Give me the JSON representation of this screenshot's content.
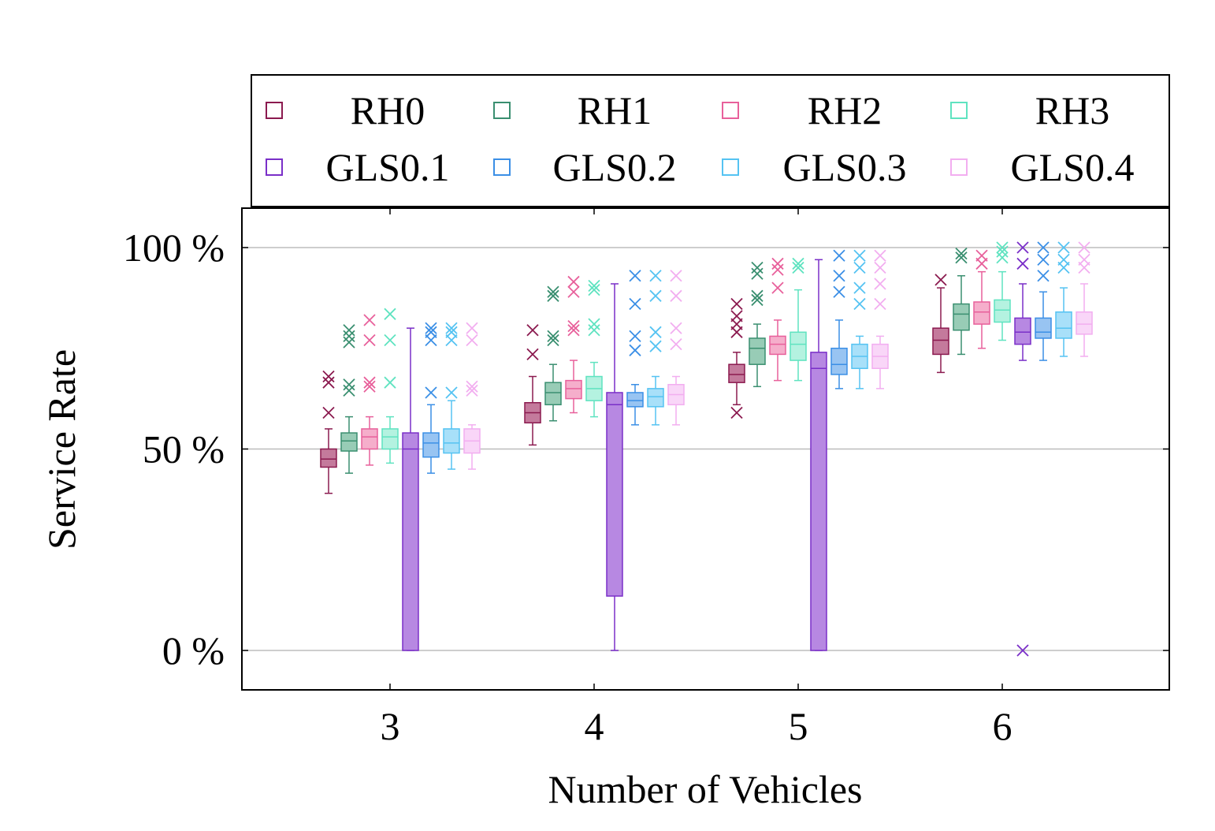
{
  "chart_data": {
    "type": "box",
    "xlabel": "Number of Vehicles",
    "ylabel": "Service Rate",
    "categories": [
      "3",
      "4",
      "5",
      "6"
    ],
    "y_ticks": [
      0,
      50,
      100
    ],
    "y_tick_labels": [
      "0 %",
      "50 %",
      "100 %"
    ],
    "ylim": [
      -10,
      110
    ],
    "grid": "horizontal",
    "legend_position": "top",
    "series": [
      {
        "name": "RH0",
        "color": "#8b1a4f",
        "fill": "#c47a9c",
        "boxes": [
          {
            "min": 39,
            "q1": 45.5,
            "median": 47.5,
            "q3": 50,
            "max": 55,
            "outliers": [
              59,
              66.5,
              68
            ]
          },
          {
            "min": 51,
            "q1": 56.5,
            "median": 59,
            "q3": 61.5,
            "max": 68,
            "outliers": [
              73.5,
              79.5
            ]
          },
          {
            "min": 61,
            "q1": 66.5,
            "median": 68.5,
            "q3": 71,
            "max": 74,
            "outliers": [
              59,
              79,
              81,
              83,
              86
            ]
          },
          {
            "min": 69,
            "q1": 73.5,
            "median": 77,
            "q3": 80,
            "max": 90,
            "outliers": [
              92
            ]
          }
        ]
      },
      {
        "name": "RH1",
        "color": "#3a8f70",
        "fill": "#98ccb6",
        "boxes": [
          {
            "min": 44,
            "q1": 49.5,
            "median": 52,
            "q3": 54,
            "max": 58,
            "outliers": [
              64.5,
              66,
              76.5,
              78,
              79.5
            ]
          },
          {
            "min": 57,
            "q1": 61,
            "median": 64,
            "q3": 66.5,
            "max": 71,
            "outliers": [
              77,
              78,
              88,
              89
            ]
          },
          {
            "min": 65.5,
            "q1": 71,
            "median": 75,
            "q3": 77.5,
            "max": 81,
            "outliers": [
              87,
              88,
              93.5,
              95
            ]
          },
          {
            "min": 73.5,
            "q1": 79.5,
            "median": 83.5,
            "q3": 86,
            "max": 93,
            "outliers": [
              97.5,
              98.5
            ]
          }
        ]
      },
      {
        "name": "RH2",
        "color": "#e8609b",
        "fill": "#f5aecb",
        "boxes": [
          {
            "min": 46,
            "q1": 50,
            "median": 53,
            "q3": 55,
            "max": 58,
            "outliers": [
              65.5,
              66.5,
              77,
              82
            ]
          },
          {
            "min": 59,
            "q1": 62.5,
            "median": 65,
            "q3": 67,
            "max": 72,
            "outliers": [
              79.5,
              80.5,
              89,
              91.5
            ]
          },
          {
            "min": 67,
            "q1": 73.5,
            "median": 76,
            "q3": 78,
            "max": 82,
            "outliers": [
              90,
              94.5,
              96
            ]
          },
          {
            "min": 75,
            "q1": 81,
            "median": 84,
            "q3": 86.5,
            "max": 94,
            "outliers": [
              96,
              98
            ]
          }
        ]
      },
      {
        "name": "RH3",
        "color": "#5fe3c0",
        "fill": "#b4f2e0",
        "boxes": [
          {
            "min": 46.5,
            "q1": 50,
            "median": 53,
            "q3": 55,
            "max": 58,
            "outliers": [
              66.5,
              77,
              83.5
            ]
          },
          {
            "min": 58,
            "q1": 62,
            "median": 65,
            "q3": 68,
            "max": 71.5,
            "outliers": [
              79.5,
              81,
              89.5,
              90.5
            ]
          },
          {
            "min": 67,
            "q1": 72,
            "median": 76,
            "q3": 79,
            "max": 89.5,
            "outliers": [
              95,
              96
            ]
          },
          {
            "min": 77,
            "q1": 81.5,
            "median": 84.5,
            "q3": 87,
            "max": 94,
            "outliers": [
              97.5,
              99,
              100
            ]
          }
        ]
      },
      {
        "name": "GLS0.1",
        "color": "#7a2fc8",
        "fill": "#b788e2",
        "boxes": [
          {
            "min": 0,
            "q1": 0,
            "median": 50,
            "q3": 54,
            "max": 80,
            "outliers": []
          },
          {
            "min": 0,
            "q1": 13.5,
            "median": 61,
            "q3": 64,
            "max": 91,
            "outliers": []
          },
          {
            "min": 0,
            "q1": 0,
            "median": 70,
            "q3": 74,
            "max": 97,
            "outliers": []
          },
          {
            "min": 72,
            "q1": 76,
            "median": 79,
            "q3": 82.5,
            "max": 91,
            "outliers": [
              0,
              96,
              100
            ]
          }
        ]
      },
      {
        "name": "GLS0.2",
        "color": "#3b8fe6",
        "fill": "#98c4f2",
        "boxes": [
          {
            "min": 44,
            "q1": 48,
            "median": 51.5,
            "q3": 54,
            "max": 61,
            "outliers": [
              64,
              77,
              79,
              80
            ]
          },
          {
            "min": 56,
            "q1": 60.5,
            "median": 62,
            "q3": 64,
            "max": 66,
            "outliers": [
              74.5,
              78,
              86,
              93
            ]
          },
          {
            "min": 65,
            "q1": 68.5,
            "median": 71,
            "q3": 75,
            "max": 82,
            "outliers": [
              89,
              93,
              98
            ]
          },
          {
            "min": 72,
            "q1": 77.5,
            "median": 79,
            "q3": 82.5,
            "max": 89,
            "outliers": [
              93,
              97,
              100
            ]
          }
        ]
      },
      {
        "name": "GLS0.3",
        "color": "#55c3f2",
        "fill": "#a8e0f9",
        "boxes": [
          {
            "min": 45,
            "q1": 49,
            "median": 51.5,
            "q3": 55,
            "max": 62,
            "outliers": [
              64,
              77,
              79,
              80
            ]
          },
          {
            "min": 56,
            "q1": 60.5,
            "median": 63,
            "q3": 65,
            "max": 68,
            "outliers": [
              75.5,
              79,
              88,
              93
            ]
          },
          {
            "min": 65,
            "q1": 70,
            "median": 73,
            "q3": 76,
            "max": 78,
            "outliers": [
              86,
              90,
              95,
              98
            ]
          },
          {
            "min": 73,
            "q1": 77.5,
            "median": 80,
            "q3": 84,
            "max": 90,
            "outliers": [
              95,
              97,
              100
            ]
          }
        ]
      },
      {
        "name": "GLS0.4",
        "color": "#f2aef0",
        "fill": "#f9d6f8",
        "boxes": [
          {
            "min": 45,
            "q1": 49,
            "median": 52,
            "q3": 55,
            "max": 56,
            "outliers": [
              64.5,
              65.5,
              77,
              80
            ]
          },
          {
            "min": 56,
            "q1": 61,
            "median": 63.5,
            "q3": 66,
            "max": 68,
            "outliers": [
              76,
              80,
              88,
              93
            ]
          },
          {
            "min": 65,
            "q1": 70,
            "median": 73,
            "q3": 76,
            "max": 78,
            "outliers": [
              86,
              91,
              95,
              98
            ]
          },
          {
            "min": 73,
            "q1": 78.5,
            "median": 81,
            "q3": 84,
            "max": 91,
            "outliers": [
              95,
              97,
              100
            ]
          }
        ]
      }
    ]
  }
}
